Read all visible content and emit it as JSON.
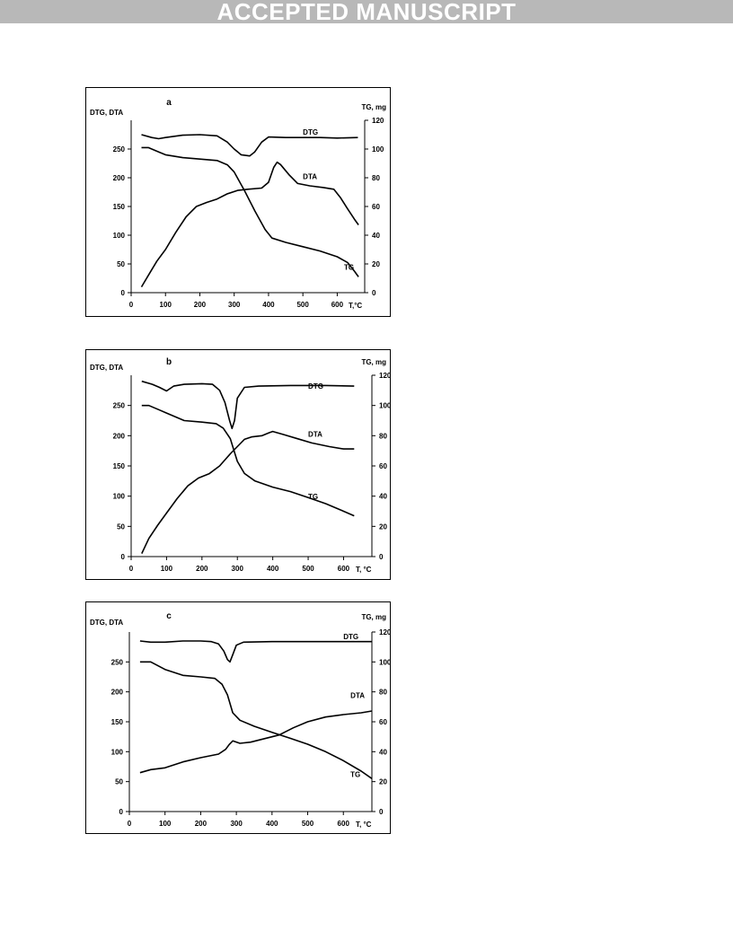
{
  "banner": {
    "text": "ACCEPTED MANUSCRIPT"
  },
  "chart_data": [
    {
      "type": "line",
      "panel_label": "a",
      "left_axis_label": "DTG, DTA",
      "right_axis_label": "TG, mg",
      "x_axis_label": "T,°C",
      "xlim": [
        0,
        680
      ],
      "x_ticks": [
        0,
        100,
        200,
        300,
        400,
        500,
        600
      ],
      "ylim_left": [
        0,
        300
      ],
      "y_ticks_left": [
        0,
        50,
        100,
        150,
        200,
        250
      ],
      "ylim_right": [
        0,
        120
      ],
      "y_ticks_right": [
        0,
        20,
        40,
        60,
        80,
        100,
        120
      ],
      "grid": false,
      "series": [
        {
          "name": "DTG",
          "axis": "left",
          "label_at": [
            275,
            500
          ],
          "points": [
            [
              30,
              275
            ],
            [
              60,
              270
            ],
            [
              80,
              268
            ],
            [
              100,
              270
            ],
            [
              150,
              274
            ],
            [
              200,
              275
            ],
            [
              250,
              273
            ],
            [
              280,
              262
            ],
            [
              300,
              250
            ],
            [
              320,
              240
            ],
            [
              345,
              238
            ],
            [
              360,
              245
            ],
            [
              380,
              262
            ],
            [
              400,
              271
            ],
            [
              450,
              270
            ],
            [
              500,
              270
            ],
            [
              550,
              270
            ],
            [
              600,
              269
            ],
            [
              660,
              270
            ]
          ]
        },
        {
          "name": "DTA",
          "axis": "left",
          "label_at": [
            198,
            500
          ],
          "points": [
            [
              30,
              10
            ],
            [
              50,
              30
            ],
            [
              75,
              55
            ],
            [
              100,
              75
            ],
            [
              130,
              105
            ],
            [
              160,
              132
            ],
            [
              190,
              150
            ],
            [
              220,
              157
            ],
            [
              250,
              163
            ],
            [
              280,
              172
            ],
            [
              310,
              178
            ],
            [
              340,
              180
            ],
            [
              380,
              182
            ],
            [
              400,
              192
            ],
            [
              415,
              218
            ],
            [
              425,
              227
            ],
            [
              435,
              223
            ],
            [
              460,
              205
            ],
            [
              485,
              190
            ],
            [
              520,
              186
            ],
            [
              560,
              183
            ],
            [
              590,
              180
            ],
            [
              610,
              165
            ],
            [
              630,
              146
            ],
            [
              650,
              128
            ],
            [
              662,
              118
            ]
          ]
        },
        {
          "name": "TG",
          "axis": "right",
          "label_at": [
            16,
            620
          ],
          "points": [
            [
              30,
              101
            ],
            [
              50,
              101
            ],
            [
              80,
              98
            ],
            [
              100,
              96
            ],
            [
              150,
              94
            ],
            [
              200,
              93
            ],
            [
              250,
              92
            ],
            [
              280,
              89
            ],
            [
              300,
              84
            ],
            [
              330,
              71
            ],
            [
              360,
              57
            ],
            [
              390,
              44
            ],
            [
              410,
              38
            ],
            [
              450,
              35
            ],
            [
              500,
              32
            ],
            [
              550,
              29
            ],
            [
              600,
              25
            ],
            [
              630,
              21
            ],
            [
              650,
              15
            ],
            [
              662,
              11
            ]
          ]
        }
      ]
    },
    {
      "type": "line",
      "panel_label": "b",
      "left_axis_label": "DTG, DTA",
      "right_axis_label": "TG, mg",
      "x_axis_label": "T, °C",
      "xlim": [
        0,
        680
      ],
      "x_ticks": [
        0,
        100,
        200,
        300,
        400,
        500,
        600
      ],
      "ylim_left": [
        0,
        300
      ],
      "y_ticks_left": [
        0,
        50,
        100,
        150,
        200,
        250
      ],
      "ylim_right": [
        0,
        120
      ],
      "y_ticks_right": [
        0,
        20,
        40,
        60,
        80,
        100,
        120
      ],
      "grid": false,
      "series": [
        {
          "name": "DTG",
          "axis": "left",
          "label_at": [
            278,
            500
          ],
          "points": [
            [
              30,
              290
            ],
            [
              60,
              285
            ],
            [
              80,
              280
            ],
            [
              100,
              274
            ],
            [
              120,
              282
            ],
            [
              150,
              285
            ],
            [
              200,
              286
            ],
            [
              230,
              285
            ],
            [
              250,
              275
            ],
            [
              265,
              255
            ],
            [
              278,
              225
            ],
            [
              285,
              212
            ],
            [
              292,
              225
            ],
            [
              300,
              262
            ],
            [
              320,
              280
            ],
            [
              360,
              282
            ],
            [
              450,
              283
            ],
            [
              550,
              283
            ],
            [
              630,
              282
            ]
          ]
        },
        {
          "name": "DTA",
          "axis": "left",
          "label_at": [
            198,
            500
          ],
          "points": [
            [
              30,
              5
            ],
            [
              50,
              30
            ],
            [
              75,
              52
            ],
            [
              100,
              72
            ],
            [
              130,
              96
            ],
            [
              160,
              117
            ],
            [
              190,
              130
            ],
            [
              220,
              137
            ],
            [
              250,
              150
            ],
            [
              280,
              170
            ],
            [
              300,
              182
            ],
            [
              320,
              194
            ],
            [
              340,
              198
            ],
            [
              370,
              200
            ],
            [
              390,
              205
            ],
            [
              400,
              207
            ],
            [
              430,
              202
            ],
            [
              470,
              195
            ],
            [
              510,
              188
            ],
            [
              560,
              182
            ],
            [
              600,
              178
            ],
            [
              630,
              178
            ]
          ]
        },
        {
          "name": "TG",
          "axis": "right",
          "label_at": [
            38,
            500
          ],
          "points": [
            [
              30,
              100
            ],
            [
              50,
              100
            ],
            [
              80,
              97
            ],
            [
              100,
              95
            ],
            [
              150,
              90
            ],
            [
              200,
              89
            ],
            [
              240,
              88
            ],
            [
              260,
              85
            ],
            [
              280,
              78
            ],
            [
              300,
              63
            ],
            [
              320,
              55
            ],
            [
              350,
              50
            ],
            [
              400,
              46
            ],
            [
              450,
              43
            ],
            [
              500,
              39
            ],
            [
              550,
              35
            ],
            [
              600,
              30
            ],
            [
              630,
              27
            ]
          ]
        }
      ]
    },
    {
      "type": "line",
      "panel_label": "c",
      "left_axis_label": "DTG, DTA",
      "right_axis_label": "TG, mg",
      "x_axis_label": "T, °C",
      "xlim": [
        0,
        680
      ],
      "x_ticks": [
        0,
        100,
        200,
        300,
        400,
        500,
        600
      ],
      "ylim_left": [
        0,
        300
      ],
      "y_ticks_left": [
        0,
        50,
        100,
        150,
        200,
        250
      ],
      "ylim_right": [
        0,
        120
      ],
      "y_ticks_right": [
        0,
        20,
        40,
        60,
        80,
        100,
        120
      ],
      "grid": false,
      "series": [
        {
          "name": "DTG",
          "axis": "left",
          "label_at": [
            288,
            600
          ],
          "points": [
            [
              30,
              285
            ],
            [
              60,
              283
            ],
            [
              100,
              283
            ],
            [
              150,
              285
            ],
            [
              200,
              285
            ],
            [
              230,
              284
            ],
            [
              250,
              280
            ],
            [
              265,
              268
            ],
            [
              275,
              254
            ],
            [
              282,
              250
            ],
            [
              290,
              262
            ],
            [
              300,
              278
            ],
            [
              320,
              283
            ],
            [
              400,
              284
            ],
            [
              500,
              284
            ],
            [
              600,
              284
            ],
            [
              680,
              284
            ]
          ]
        },
        {
          "name": "DTA",
          "axis": "left",
          "label_at": [
            190,
            620
          ],
          "points": [
            [
              30,
              65
            ],
            [
              60,
              70
            ],
            [
              100,
              73
            ],
            [
              150,
              83
            ],
            [
              200,
              90
            ],
            [
              250,
              96
            ],
            [
              270,
              104
            ],
            [
              280,
              112
            ],
            [
              290,
              118
            ],
            [
              310,
              114
            ],
            [
              340,
              116
            ],
            [
              380,
              122
            ],
            [
              420,
              128
            ],
            [
              460,
              140
            ],
            [
              500,
              150
            ],
            [
              550,
              158
            ],
            [
              600,
              162
            ],
            [
              650,
              165
            ],
            [
              680,
              168
            ]
          ]
        },
        {
          "name": "TG",
          "axis": "right",
          "label_at": [
            23,
            620
          ],
          "points": [
            [
              30,
              100
            ],
            [
              60,
              100
            ],
            [
              100,
              95
            ],
            [
              150,
              91
            ],
            [
              200,
              90
            ],
            [
              240,
              89
            ],
            [
              260,
              85
            ],
            [
              275,
              78
            ],
            [
              290,
              66
            ],
            [
              310,
              61
            ],
            [
              350,
              57
            ],
            [
              400,
              53
            ],
            [
              450,
              49
            ],
            [
              500,
              45
            ],
            [
              550,
              40
            ],
            [
              600,
              34
            ],
            [
              650,
              27
            ],
            [
              680,
              22
            ]
          ]
        }
      ]
    }
  ]
}
